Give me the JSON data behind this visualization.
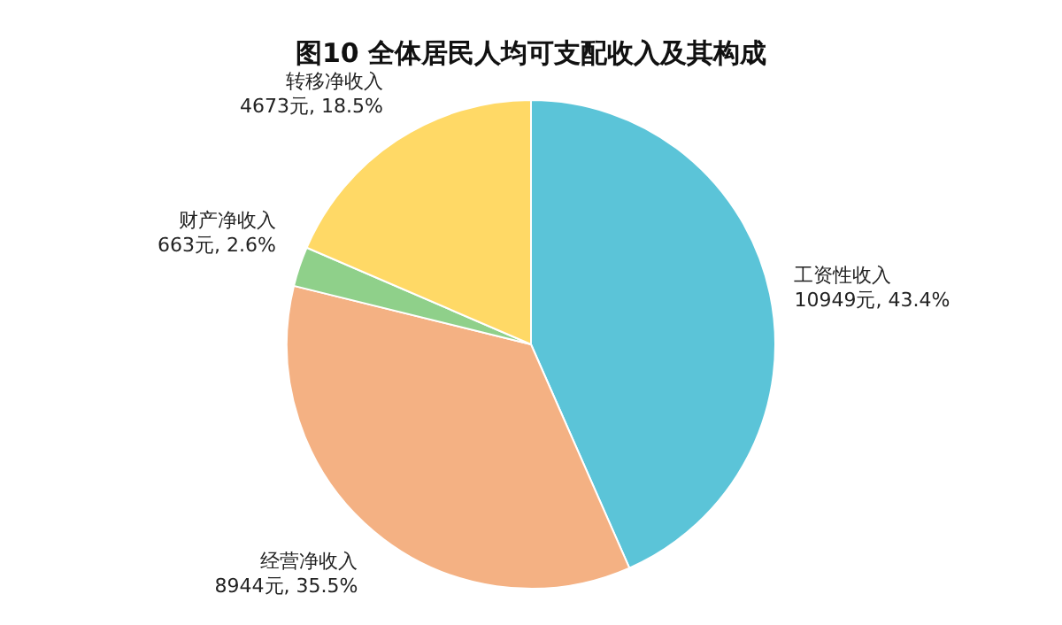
{
  "chart_data": {
    "type": "pie",
    "title": "图10 全体居民人均可支配收入及其构成",
    "categories": [
      "工资性收入",
      "经营净收入",
      "财产净收入",
      "转移净收入"
    ],
    "values": [
      10949,
      8944,
      663,
      4673
    ],
    "colors": [
      "#5bc4d8",
      "#f4b183",
      "#8fd08a",
      "#ffd966"
    ],
    "value_labels": [
      "10949元, 43.4%",
      "8944元, 35.5%",
      "663元, 2.6%",
      "4673元, 18.5%"
    ],
    "legend": false
  }
}
